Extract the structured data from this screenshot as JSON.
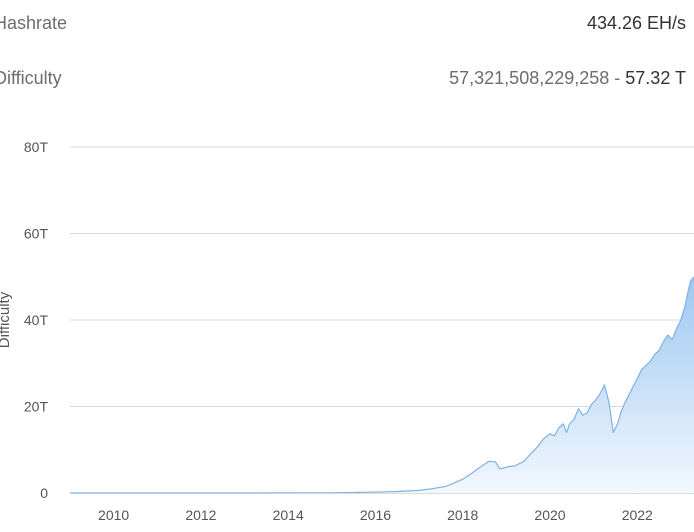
{
  "stats": {
    "hashrate": {
      "label": "Hashrate",
      "value": "434.26 EH/s"
    },
    "difficulty": {
      "label": "Difficulty",
      "value_full": "57,321,508,229,258",
      "separator": " - ",
      "value_short": "57.32 T"
    }
  },
  "colors": {
    "line": "#7fb2e6",
    "fill_top": "#9ec7f0",
    "fill_bottom": "#f2f8fe",
    "grid": "#d8d8d8",
    "axis": "#bbbbbb"
  },
  "chart_data": {
    "type": "area",
    "ylabel": "Difficulty",
    "xlabel": "",
    "title": "",
    "y_unit": "T",
    "ylim": [
      0,
      80
    ],
    "xlim": [
      2009,
      2023.3
    ],
    "yticks": [
      {
        "value": 0,
        "label": "0"
      },
      {
        "value": 20,
        "label": "20T"
      },
      {
        "value": 40,
        "label": "40T"
      },
      {
        "value": 60,
        "label": "60T"
      },
      {
        "value": 80,
        "label": "80T"
      }
    ],
    "xticks": [
      {
        "value": 2010,
        "label": "2010"
      },
      {
        "value": 2012,
        "label": "2012"
      },
      {
        "value": 2014,
        "label": "2014"
      },
      {
        "value": 2016,
        "label": "2016"
      },
      {
        "value": 2018,
        "label": "2018"
      },
      {
        "value": 2020,
        "label": "2020"
      },
      {
        "value": 2022,
        "label": "2022"
      }
    ],
    "grid": true,
    "legend": "none",
    "series": [
      {
        "x": [
          2009.0,
          2010.0,
          2011.0,
          2012.0,
          2013.0,
          2014.0,
          2015.0,
          2016.0,
          2016.5,
          2017.0,
          2017.3,
          2017.6,
          2017.8,
          2018.0,
          2018.2,
          2018.4,
          2018.6,
          2018.75,
          2018.85,
          2018.95,
          2019.05,
          2019.2,
          2019.4,
          2019.55,
          2019.7,
          2019.85,
          2020.0,
          2020.1,
          2020.2,
          2020.3,
          2020.38,
          2020.45,
          2020.55,
          2020.65,
          2020.75,
          2020.85,
          2020.95,
          2021.05,
          2021.15,
          2021.25,
          2021.35,
          2021.45,
          2021.55,
          2021.62,
          2021.7,
          2021.8,
          2021.9,
          2022.0,
          2022.1,
          2022.2,
          2022.3,
          2022.4,
          2022.5,
          2022.6,
          2022.7,
          2022.8,
          2022.9,
          2023.0,
          2023.1,
          2023.15,
          2023.22,
          2023.3
        ],
        "y": [
          0.0,
          0.0,
          0.0,
          0.0,
          0.0,
          0.03,
          0.05,
          0.2,
          0.35,
          0.6,
          1.0,
          1.5,
          2.3,
          3.2,
          4.5,
          6.0,
          7.3,
          7.2,
          5.6,
          5.8,
          6.1,
          6.3,
          7.3,
          9.0,
          10.5,
          12.5,
          13.7,
          13.2,
          15.0,
          16.0,
          14.0,
          16.0,
          17.0,
          19.5,
          18.0,
          18.5,
          20.5,
          21.5,
          23.0,
          25.0,
          21.0,
          14.0,
          16.0,
          18.5,
          20.5,
          22.5,
          24.5,
          26.5,
          28.5,
          29.5,
          30.5,
          32.0,
          33.0,
          35.0,
          36.5,
          35.5,
          38.0,
          40.0,
          43.5,
          46.0,
          49.0,
          50.0
        ]
      }
    ]
  }
}
